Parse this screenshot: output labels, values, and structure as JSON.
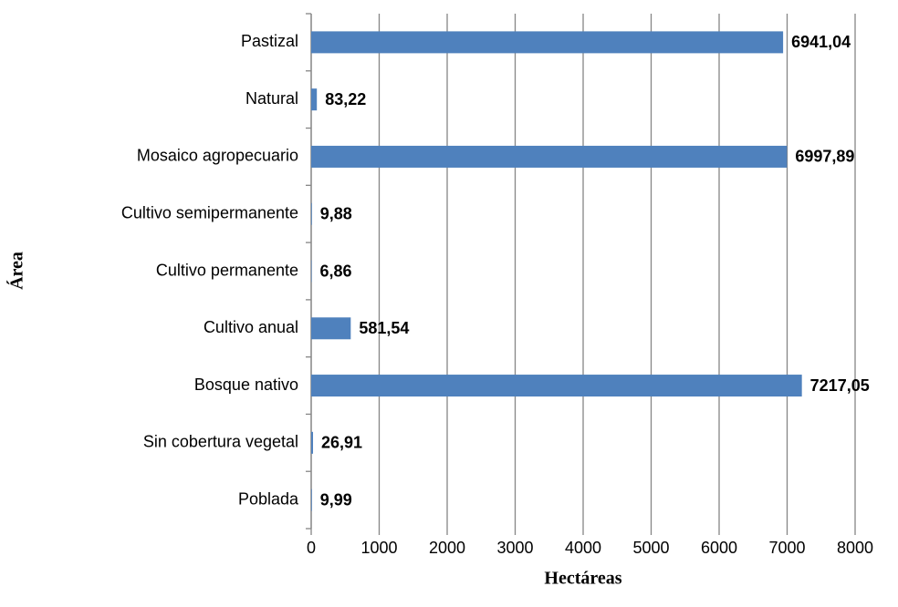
{
  "chart_data": {
    "type": "bar",
    "orientation": "horizontal",
    "x_label": "Hectáreas",
    "y_label": "Área",
    "categories": [
      "Pastizal",
      "Natural",
      "Mosaico agropecuario",
      "Cultivo semipermanente",
      "Cultivo permanente",
      "Cultivo anual",
      "Bosque nativo",
      "Sin cobertura vegetal",
      "Poblada"
    ],
    "values": [
      6941.04,
      83.22,
      6997.89,
      9.88,
      6.86,
      581.54,
      7217.05,
      26.91,
      9.99
    ],
    "value_labels": [
      "6941,04",
      "83,22",
      "6997,89",
      "9,88",
      "6,86",
      "581,54",
      "7217,05",
      "26,91",
      "9,99"
    ],
    "color": "#4f81bd",
    "value_label_color": "#ff0000",
    "xlim": [
      0,
      8000
    ],
    "xticks": [
      0,
      1000,
      2000,
      3000,
      4000,
      5000,
      6000,
      7000,
      8000
    ],
    "grid": true
  }
}
